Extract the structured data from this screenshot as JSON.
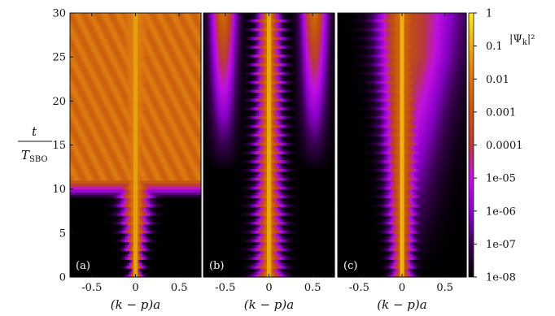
{
  "figure": {
    "ylabel_top": "t",
    "ylabel_bottom": "T",
    "ylabel_sub": "SBO",
    "colorbar_label": "|Ψ",
    "colorbar_label_sub": "k",
    "colorbar_label_tail": "|²"
  },
  "chart_data": [
    {
      "type": "heatmap",
      "panel_label": "(a)",
      "xlabel": "(k − p)a",
      "ylabel": "t / T_SBO",
      "xlim": [
        -0.75,
        0.75
      ],
      "ylim": [
        0,
        30
      ],
      "xticks": [
        -0.5,
        0,
        0.5
      ],
      "xtick_labels": [
        "-0.5",
        "0",
        "0.5"
      ],
      "yticks": [
        0,
        5,
        10,
        15,
        20,
        25,
        30
      ],
      "ytick_labels": [
        "0",
        "5",
        "10",
        "15",
        "20",
        "25",
        "30"
      ],
      "profile": "spreading",
      "background_fill_time": 11
    },
    {
      "type": "heatmap",
      "panel_label": "(b)",
      "xlabel": "(k − p)a",
      "xlim": [
        -0.75,
        0.75
      ],
      "ylim": [
        0,
        30
      ],
      "xticks": [
        -0.5,
        0,
        0.5
      ],
      "xtick_labels": [
        "-0.5",
        "0",
        "0.5"
      ],
      "profile": "side_lobes"
    },
    {
      "type": "heatmap",
      "panel_label": "(c)",
      "xlabel": "(k − p)a",
      "xlim": [
        -0.75,
        0.75
      ],
      "ylim": [
        0,
        30
      ],
      "xticks": [
        -0.5,
        0,
        0.5
      ],
      "xtick_labels": [
        "-0.5",
        "0",
        "0.5"
      ],
      "profile": "narrow"
    }
  ],
  "colorbar": {
    "scale": "log",
    "range": [
      1e-08,
      1
    ],
    "tick_labels": [
      "1",
      "0.1",
      "0.01",
      "0.001",
      "0.0001",
      "1e-05",
      "1e-06",
      "1e-07",
      "1e-08"
    ],
    "colors": [
      "#000000",
      "#3a0052",
      "#8a00c8",
      "#c010e0",
      "#b83a3a",
      "#c4540c",
      "#d87410",
      "#eeaa10",
      "#ffe820"
    ]
  }
}
